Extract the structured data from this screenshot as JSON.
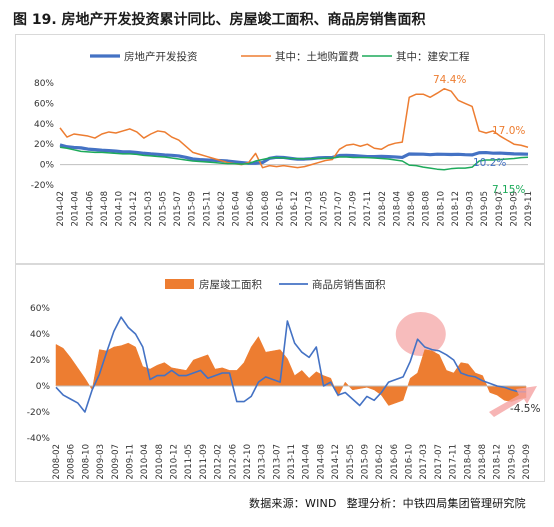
{
  "title": "图 19. 房地产开发投资累计同比、房屋竣工面积、商品房销售面积",
  "source": {
    "label": "数据来源：WIND",
    "analysis": "整理分析：中铁四局集团管理研究院"
  },
  "chart_data": [
    {
      "type": "line",
      "ylim": [
        -20,
        80
      ],
      "y_ticks": [
        "80%",
        "60%",
        "40%",
        "20%",
        "0%",
        "-20%"
      ],
      "x_tick_labels": [
        "2014-02",
        "2014-04",
        "2014-06",
        "2014-08",
        "2014-10",
        "2014-12",
        "2015-03",
        "2015-05",
        "2015-07",
        "2015-09",
        "2015-11",
        "2016-02",
        "2016-04",
        "2016-06",
        "2016-08",
        "2016-10",
        "2016-12",
        "2017-03",
        "2017-05",
        "2017-07",
        "2017-09",
        "2017-11",
        "2018-02",
        "2018-04",
        "2018-06",
        "2018-08",
        "2018-10",
        "2018-12",
        "2019-03",
        "2019-05",
        "2019-07",
        "2019-09",
        "2019-11"
      ],
      "x_points": 68,
      "legend": [
        "房地产开发投资",
        "其中：土地购置费",
        "其中：建安工程"
      ],
      "legend_position": "top",
      "colors": [
        "#4472C4",
        "#ED7D31",
        "#1DAA5A"
      ],
      "annotations": [
        "74.4%",
        "17.0%",
        "10.2%",
        "7.15%"
      ],
      "series": [
        {
          "name": "房地产开发投资",
          "values": [
            19.3,
            17.5,
            16.8,
            16.4,
            15.2,
            14.7,
            14.1,
            13.7,
            13.2,
            12.5,
            12.5,
            11.9,
            11.1,
            10.5,
            10.1,
            9.4,
            9.1,
            8.5,
            7.2,
            5.5,
            4.9,
            4.5,
            4.2,
            3.9,
            3.5,
            2.7,
            2.0,
            1.3,
            1.3,
            2.0,
            6.2,
            7.2,
            7.0,
            6.1,
            5.3,
            5.4,
            5.8,
            6.6,
            6.9,
            7.0,
            8.9,
            9.1,
            8.8,
            8.3,
            7.9,
            7.9,
            8.1,
            7.8,
            7.5,
            7.0,
            10.4,
            10.3,
            10.2,
            9.7,
            10.2,
            10.1,
            9.9,
            10.1,
            9.7,
            9.5,
            11.6,
            11.8,
            11.2,
            11.3,
            10.9,
            10.5,
            10.4,
            10.2
          ]
        },
        {
          "name": "其中：土地购置费",
          "values": [
            36,
            27,
            30,
            29,
            28,
            26,
            30,
            32,
            31,
            33,
            35,
            32,
            26,
            30,
            33,
            32,
            27,
            24,
            18,
            12,
            10,
            8,
            6,
            4,
            2,
            1,
            0,
            2,
            11,
            -3,
            -1,
            -2,
            -1,
            -2,
            -3,
            -2,
            0,
            2,
            4,
            5,
            15,
            19,
            20,
            18,
            20,
            16,
            15,
            19,
            21,
            22,
            66,
            69,
            69,
            66,
            70,
            74.4,
            72,
            63,
            60,
            57,
            33,
            31,
            33,
            28,
            24,
            20,
            19,
            17.0
          ]
        },
        {
          "name": "其中：建安工程",
          "values": [
            17.0,
            16.0,
            14.5,
            13.0,
            12.5,
            12.0,
            12.0,
            11.5,
            11.0,
            10.5,
            10.5,
            10.0,
            9.0,
            8.5,
            8.0,
            7.5,
            6.5,
            5.5,
            4.5,
            3.5,
            3.0,
            2.5,
            2.0,
            1.5,
            1.0,
            1.0,
            0.5,
            1.0,
            3.5,
            5.0,
            6.5,
            6.8,
            6.5,
            6.0,
            5.8,
            5.5,
            5.8,
            6.0,
            6.2,
            6.5,
            7.5,
            7.5,
            7.0,
            7.0,
            6.8,
            6.5,
            6.0,
            5.5,
            4.5,
            3.5,
            -0.5,
            -1.0,
            -2.5,
            -3.5,
            -4.5,
            -5.0,
            -4.0,
            -3.5,
            -3.5,
            -2.5,
            3.5,
            4.5,
            4.5,
            5.0,
            5.5,
            6.0,
            6.8,
            7.15
          ]
        }
      ]
    },
    {
      "type": "area",
      "ylim": [
        -40,
        60
      ],
      "y_ticks": [
        "60%",
        "40%",
        "20%",
        "0%",
        "-20%",
        "-40%"
      ],
      "x_tick_labels": [
        "2008-02",
        "2008-06",
        "2008-10",
        "2009-03",
        "2009-07",
        "2009-11",
        "2010-04",
        "2010-08",
        "2010-12",
        "2011-05",
        "2011-09",
        "2012-02",
        "2012-06",
        "2012-10",
        "2013-03",
        "2013-07",
        "2013-11",
        "2014-04",
        "2014-08",
        "2014-12",
        "2015-05",
        "2015-09",
        "2016-02",
        "2016-06",
        "2016-10",
        "2017-03",
        "2017-07",
        "2017-11",
        "2018-04",
        "2018-08",
        "2018-12",
        "2019-05",
        "2019-09"
      ],
      "x_points": 66,
      "legend": [
        "房屋竣工面积",
        "商品房销售面积"
      ],
      "legend_position": "top",
      "colors": [
        "#ED7D31",
        "#4472C4"
      ],
      "annotations": [
        "-4.5%"
      ],
      "series": [
        {
          "name": "房屋竣工面积",
          "values": [
            32,
            29,
            22,
            14,
            6,
            -3,
            28,
            27,
            30,
            31,
            33,
            30,
            15,
            13,
            16,
            18,
            14,
            13,
            12,
            20,
            22,
            24,
            13,
            14,
            12,
            12,
            18,
            30,
            38,
            26,
            27,
            28,
            21,
            8,
            12,
            6,
            11,
            8,
            6,
            -8,
            3,
            -3,
            -2,
            -1,
            -3,
            -7,
            -15,
            -13,
            -11,
            6,
            10,
            28,
            27,
            24,
            12,
            10,
            18,
            17,
            10,
            8,
            -5,
            -7,
            -11,
            -12,
            -10,
            -9
          ]
        },
        {
          "name": "商品房销售面积",
          "values": [
            -1,
            -7,
            -10,
            -13,
            -20,
            -3,
            9,
            26,
            42,
            53,
            45,
            40,
            30,
            5,
            8,
            8,
            12,
            8,
            8,
            10,
            12,
            6,
            8,
            10,
            10,
            -12,
            -12,
            -8,
            3,
            7,
            5,
            3,
            50,
            33,
            26,
            22,
            30,
            0,
            3,
            -7,
            -5,
            -10,
            -15,
            -8,
            -11,
            -5,
            3,
            5,
            7,
            19,
            36,
            30,
            28,
            27,
            24,
            20,
            10,
            8,
            7,
            4,
            2,
            0,
            -1,
            -3,
            -4.5,
            -4.5
          ]
        }
      ]
    }
  ]
}
